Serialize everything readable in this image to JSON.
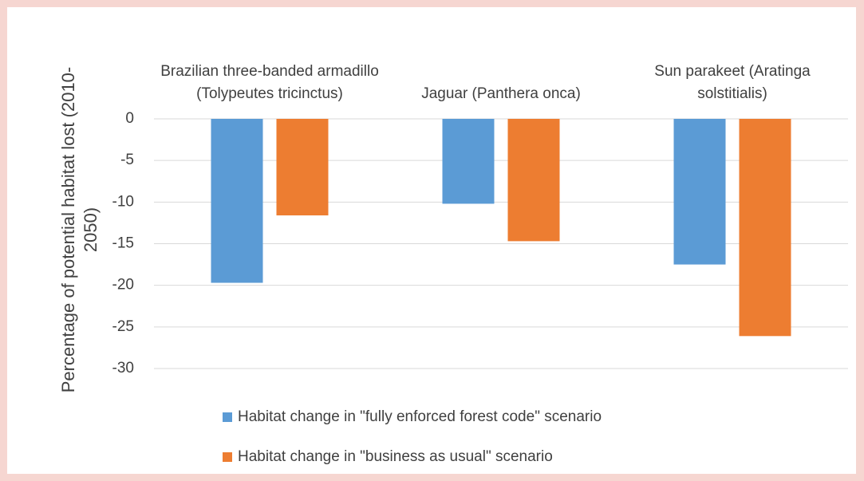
{
  "chart_data": {
    "type": "bar",
    "y_label": "Percentage of potential habitat lost (2010-2050)",
    "categories": [
      "Brazilian three-banded armadillo (Tolypeutes tricinctus)",
      "Jaguar (Panthera onca)",
      "Sun parakeet (Aratinga solstitialis)"
    ],
    "series": [
      {
        "name": "Habitat change in \"fully enforced forest code\" scenario",
        "color": "#5b9bd5",
        "values": [
          -19.7,
          -10.2,
          -17.5
        ]
      },
      {
        "name": "Habitat change in \"business as usual\" scenario",
        "color": "#ed7d31",
        "values": [
          -11.6,
          -14.7,
          -26.1
        ]
      }
    ],
    "ylim": [
      -30,
      0
    ],
    "yticks": [
      0,
      -5,
      -10,
      -15,
      -20,
      -25,
      -30
    ],
    "grid": true,
    "legend": "bottom"
  }
}
